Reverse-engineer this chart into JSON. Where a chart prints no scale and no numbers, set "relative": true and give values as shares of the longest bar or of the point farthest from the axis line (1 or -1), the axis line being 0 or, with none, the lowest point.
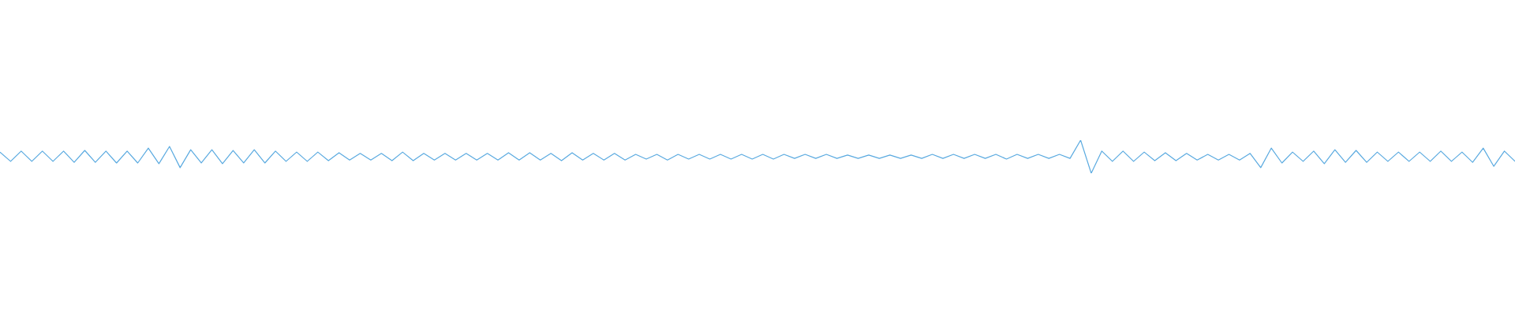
{
  "chart_data": {
    "type": "line",
    "relative": true,
    "marker": "none",
    "legend": false,
    "categories": [
      null,
      null,
      null,
      null,
      null,
      null,
      null,
      null,
      null,
      null,
      null,
      null,
      null,
      null,
      null,
      null,
      null,
      null,
      null,
      null,
      null,
      null,
      null,
      null,
      null,
      null,
      null,
      null,
      null,
      null,
      null,
      null,
      null,
      null,
      null,
      null,
      null,
      null,
      null,
      null,
      null,
      null,
      null,
      null,
      null,
      null,
      null,
      null,
      null,
      null,
      null,
      null,
      null,
      null,
      null,
      null,
      null,
      null,
      null,
      null,
      null,
      null,
      null,
      null,
      null,
      null,
      null,
      null,
      null,
      null,
      null,
      null,
      null,
      null,
      null,
      null,
      null,
      null,
      null,
      null,
      null,
      null,
      null,
      null,
      null,
      null,
      null,
      null,
      null,
      null,
      null,
      null,
      null,
      null,
      null,
      null,
      null,
      null,
      null,
      null,
      null,
      null,
      null,
      null,
      null,
      null,
      null,
      null,
      null,
      null,
      null,
      null,
      null,
      null,
      null,
      null,
      null,
      null,
      null,
      null,
      null,
      null,
      null,
      null,
      null,
      null,
      null,
      null,
      null,
      null,
      null,
      null,
      null,
      null,
      null,
      null,
      null,
      null,
      null,
      null,
      null,
      null,
      null,
      null
    ],
    "series": [
      {
        "color": "#5aaae0",
        "values": [
          0.64,
          0.36,
          0.67,
          0.36,
          0.67,
          0.36,
          0.67,
          0.33,
          0.69,
          0.33,
          0.67,
          0.31,
          0.67,
          0.31,
          0.76,
          0.29,
          0.81,
          0.17,
          0.71,
          0.31,
          0.71,
          0.29,
          0.69,
          0.31,
          0.71,
          0.31,
          0.67,
          0.36,
          0.64,
          0.36,
          0.64,
          0.38,
          0.62,
          0.4,
          0.6,
          0.4,
          0.6,
          0.38,
          0.64,
          0.38,
          0.6,
          0.4,
          0.6,
          0.4,
          0.6,
          0.4,
          0.6,
          0.4,
          0.62,
          0.4,
          0.62,
          0.4,
          0.6,
          0.38,
          0.62,
          0.4,
          0.6,
          0.4,
          0.6,
          0.4,
          0.57,
          0.43,
          0.57,
          0.4,
          0.57,
          0.43,
          0.57,
          0.43,
          0.57,
          0.43,
          0.57,
          0.43,
          0.57,
          0.43,
          0.57,
          0.45,
          0.57,
          0.45,
          0.57,
          0.45,
          0.55,
          0.45,
          0.55,
          0.45,
          0.55,
          0.45,
          0.55,
          0.45,
          0.57,
          0.45,
          0.57,
          0.45,
          0.57,
          0.45,
          0.57,
          0.43,
          0.57,
          0.45,
          0.57,
          0.45,
          0.57,
          0.45,
          1,
          0,
          0.67,
          0.36,
          0.67,
          0.36,
          0.64,
          0.38,
          0.62,
          0.38,
          0.6,
          0.4,
          0.57,
          0.4,
          0.57,
          0.4,
          0.6,
          0.17,
          0.76,
          0.31,
          0.64,
          0.36,
          0.67,
          0.29,
          0.71,
          0.33,
          0.69,
          0.33,
          0.64,
          0.36,
          0.64,
          0.36,
          0.64,
          0.36,
          0.67,
          0.36,
          0.64,
          0.33,
          0.76,
          0.21,
          0.67,
          0.36
        ]
      }
    ]
  }
}
